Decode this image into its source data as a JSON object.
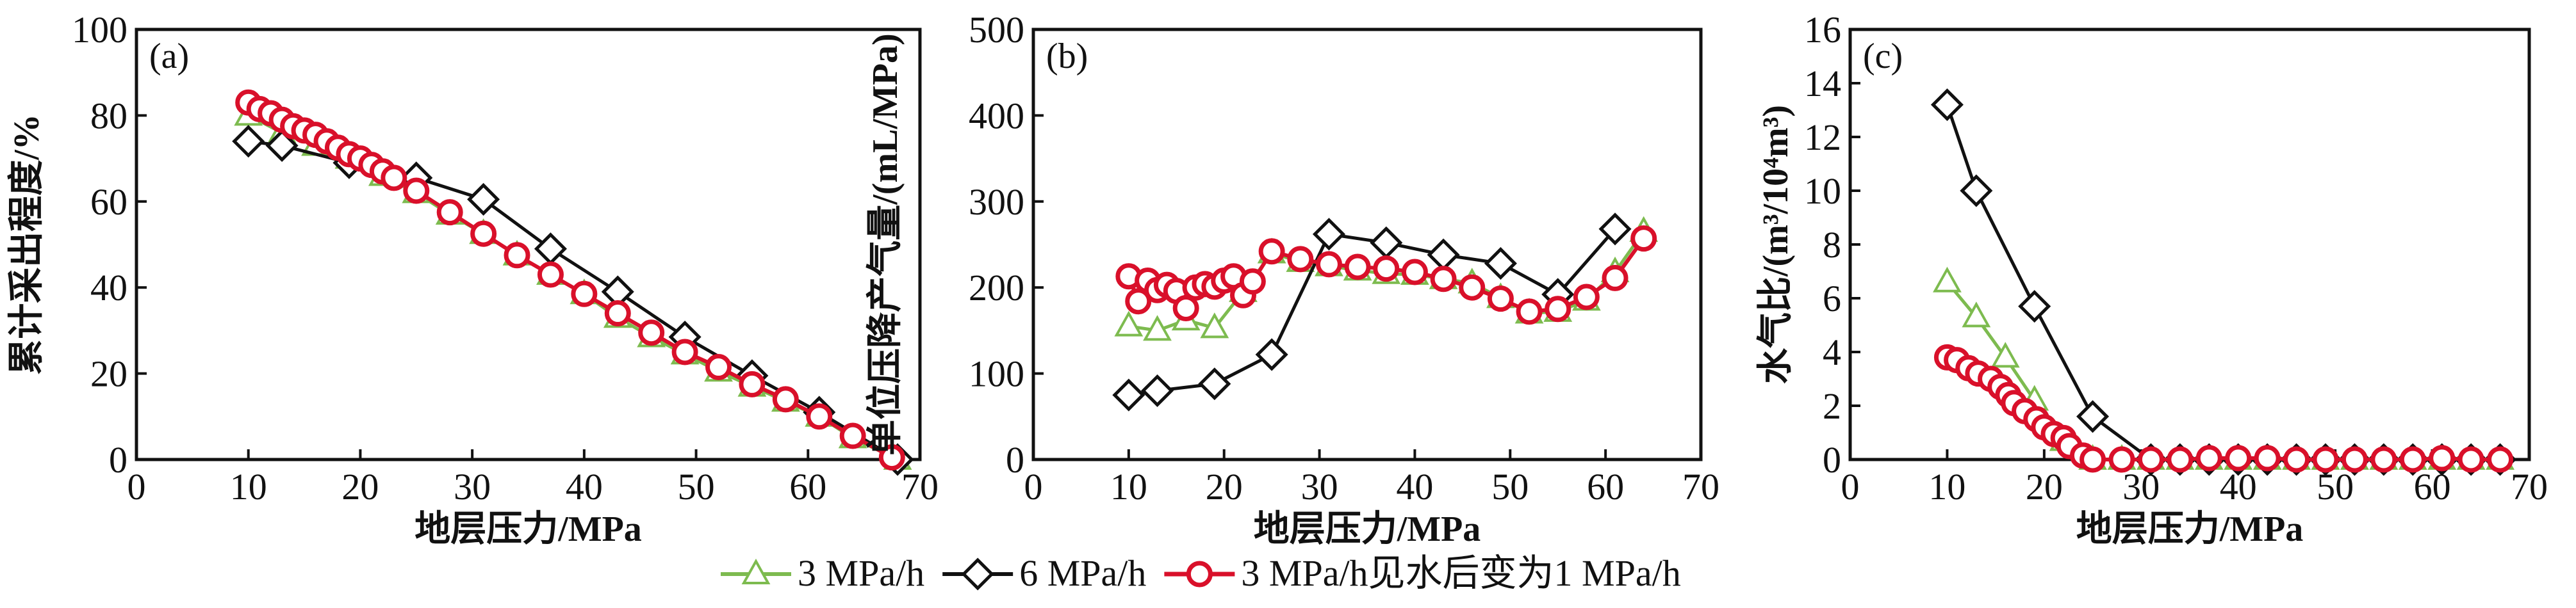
{
  "legend": {
    "placement": "bottom-center",
    "entries": [
      {
        "name": "3 MPa/h",
        "marker": "triangle",
        "color": "#7dbb4f"
      },
      {
        "name": "6 MPa/h",
        "marker": "diamond",
        "color": "#111111"
      },
      {
        "name": "3 MPa/h见水后变为1 MPa/h",
        "marker": "circle",
        "color": "#d9102a"
      }
    ]
  },
  "chart_data": [
    {
      "type": "line",
      "panel_label": "(a)",
      "title": "",
      "xlabel": "地层压力/MPa",
      "ylabel": "累计采出程度/%",
      "xlim": [
        0,
        70
      ],
      "ylim": [
        0,
        100
      ],
      "xticks": [
        0,
        10,
        20,
        30,
        40,
        50,
        60,
        70
      ],
      "yticks": [
        0,
        20,
        40,
        60,
        80,
        100
      ],
      "grid": false,
      "series": [
        {
          "name": "3 MPa/h",
          "x": [
            10,
            13,
            16,
            19,
            22,
            25,
            28,
            31,
            34,
            37,
            40,
            43,
            46,
            49,
            52,
            55,
            58,
            61,
            64,
            68
          ],
          "y": [
            80,
            76,
            73,
            70,
            66,
            62,
            57,
            52.5,
            47.5,
            43,
            38.5,
            33,
            28.5,
            24.5,
            20.5,
            17,
            13.5,
            10,
            5,
            0
          ]
        },
        {
          "name": "6 MPa/h",
          "x": [
            10,
            13,
            19,
            25,
            31,
            37,
            43,
            49,
            55,
            61,
            68
          ],
          "y": [
            74,
            73,
            69,
            65.5,
            60.5,
            49,
            39,
            28.5,
            19.5,
            11,
            0
          ]
        },
        {
          "name": "3 MPa/h见水后变为1 MPa/h",
          "x": [
            10,
            11,
            12,
            13,
            14,
            15,
            16,
            17,
            18,
            19,
            20,
            21,
            22,
            23,
            25,
            28,
            31,
            34,
            37,
            40,
            43,
            46,
            49,
            52,
            55,
            58,
            61,
            64,
            67.5
          ],
          "y": [
            83,
            81.5,
            80.5,
            79,
            77.5,
            76.5,
            75.5,
            74,
            72.5,
            71,
            70,
            68.5,
            67,
            65.5,
            62.5,
            57.5,
            52.5,
            47.5,
            43,
            38.5,
            34,
            29.5,
            25,
            21.5,
            17.5,
            14,
            10,
            5.5,
            0.5
          ]
        }
      ]
    },
    {
      "type": "line",
      "panel_label": "(b)",
      "title": "",
      "xlabel": "地层压力/MPa",
      "ylabel": "单位压降产气量/(mL/MPa)",
      "xlim": [
        0,
        70
      ],
      "ylim": [
        0,
        500
      ],
      "xticks": [
        0,
        10,
        20,
        30,
        40,
        50,
        60,
        70
      ],
      "yticks": [
        0,
        100,
        200,
        300,
        400,
        500
      ],
      "grid": false,
      "series": [
        {
          "name": "3 MPa/h",
          "x": [
            10,
            13,
            16,
            19,
            22,
            25,
            28,
            31,
            34,
            37,
            40,
            43,
            46,
            49,
            52,
            55,
            58,
            61,
            64
          ],
          "y": [
            155,
            150,
            162,
            153,
            195,
            240,
            230,
            225,
            220,
            216,
            215,
            210,
            205,
            188,
            170,
            172,
            185,
            218,
            265
          ]
        },
        {
          "name": "6 MPa/h",
          "x": [
            10,
            13,
            19,
            25,
            31,
            37,
            43,
            49,
            55,
            61
          ],
          "y": [
            75,
            80,
            88,
            122,
            262,
            252,
            238,
            228,
            192,
            268
          ]
        },
        {
          "name": "3 MPa/h见水后变为1 MPa/h",
          "x": [
            10,
            11,
            12,
            13,
            14,
            15,
            16,
            17,
            18,
            19,
            20,
            21,
            22,
            23,
            25,
            28,
            31,
            34,
            37,
            40,
            43,
            46,
            49,
            52,
            55,
            58,
            61,
            64
          ],
          "y": [
            213,
            184,
            208,
            197,
            203,
            196,
            176,
            200,
            204,
            201,
            208,
            213,
            191,
            207,
            242,
            233,
            227,
            224,
            222,
            218,
            210,
            200,
            187,
            172,
            175,
            189,
            211,
            257
          ]
        }
      ]
    },
    {
      "type": "line",
      "panel_label": "(c)",
      "title": "",
      "xlabel": "地层压力/MPa",
      "ylabel": "水气比/(m³/10⁴m³)",
      "xlim": [
        0,
        70
      ],
      "ylim": [
        0,
        16
      ],
      "xticks": [
        0,
        10,
        20,
        30,
        40,
        50,
        60,
        70
      ],
      "yticks": [
        0,
        2,
        4,
        6,
        8,
        10,
        12,
        14,
        16
      ],
      "grid": false,
      "series": [
        {
          "name": "3 MPa/h",
          "x": [
            10,
            13,
            16,
            19,
            22,
            25,
            28,
            31,
            34,
            37,
            40,
            43,
            46,
            49,
            52,
            55,
            58,
            61,
            64,
            67
          ],
          "y": [
            6.6,
            5.3,
            3.8,
            2.2,
            0.7,
            0,
            0,
            0,
            0,
            0,
            0,
            0,
            0,
            0,
            0,
            0,
            0,
            0,
            0,
            0
          ]
        },
        {
          "name": "6 MPa/h",
          "x": [
            10,
            13,
            19,
            25,
            31,
            34,
            37,
            40,
            43,
            46,
            49,
            52,
            55,
            58,
            61,
            64,
            67
          ],
          "y": [
            13.2,
            10.0,
            5.7,
            1.6,
            0,
            0,
            0,
            0,
            0,
            0,
            0,
            0,
            0,
            0,
            0,
            0,
            0
          ]
        },
        {
          "name": "3 MPa/h见水后变为1 MPa/h",
          "x": [
            10,
            11,
            12.2,
            13.2,
            14.5,
            15.5,
            16.3,
            16.9,
            18,
            19.2,
            20,
            21,
            22,
            22.6,
            24,
            25,
            28,
            31,
            34,
            37,
            40,
            43,
            46,
            49,
            52,
            55,
            58,
            61,
            64,
            67
          ],
          "y": [
            3.8,
            3.7,
            3.4,
            3.2,
            3.0,
            2.7,
            2.4,
            2.1,
            1.8,
            1.5,
            1.2,
            0.95,
            0.8,
            0.5,
            0.15,
            0,
            0,
            0,
            0,
            0.05,
            0.05,
            0.05,
            0,
            0,
            0,
            0,
            0,
            0.05,
            0,
            0
          ]
        }
      ]
    }
  ]
}
